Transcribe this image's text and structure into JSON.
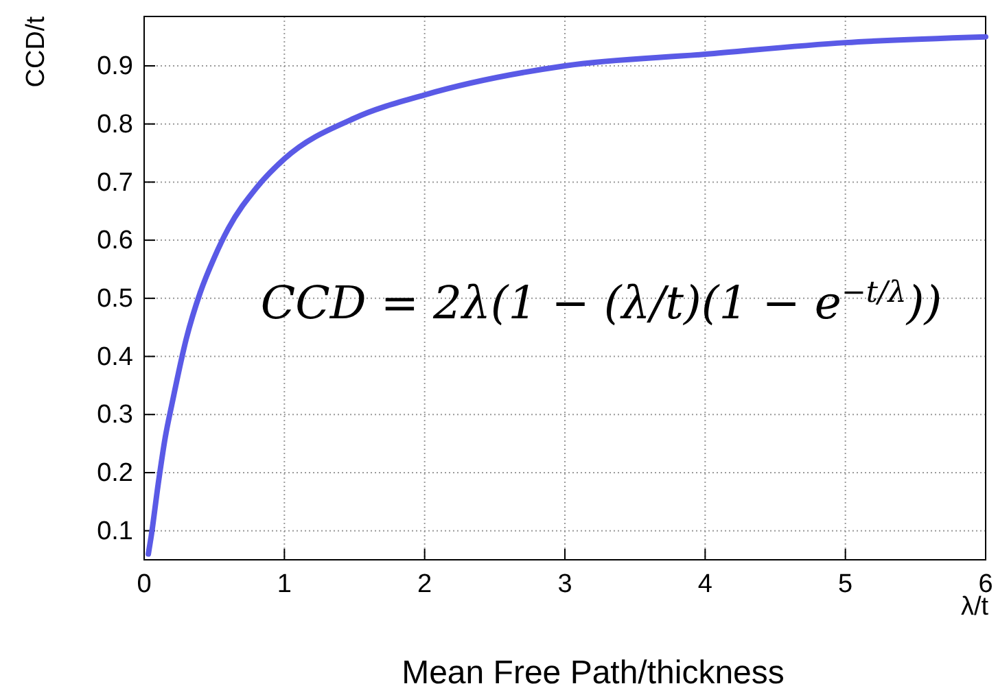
{
  "chart_data": {
    "type": "line",
    "xlabel": "λ/t",
    "ylabel": "CCD/t",
    "annotations": [
      "CCD = 2λ(1 − (λ/t)(1 − e$^{−t/λ}$))",
      "Mean Free Path/thickness"
    ],
    "xlim": [
      0,
      6
    ],
    "xticks": [
      0,
      1,
      2,
      3,
      4,
      5,
      6
    ],
    "ylim": [
      0.05,
      0.985
    ],
    "yticks": [
      0.1,
      0.2,
      0.3,
      0.4,
      0.5,
      0.6,
      0.7,
      0.8,
      0.9
    ],
    "grid": true,
    "line_style": "solid",
    "series": [
      {
        "color": "#5a5ae6",
        "x": [
          0.03,
          0.05,
          0.1,
          0.15,
          0.2,
          0.3,
          0.4,
          0.5,
          0.6,
          0.8,
          1,
          1.5,
          2,
          3,
          4,
          5,
          6
        ],
        "values": [
          0.06,
          0.09,
          0.18,
          0.26,
          0.32,
          0.43,
          0.51,
          0.57,
          0.62,
          0.69,
          0.74,
          0.81,
          0.85,
          0.9,
          0.92,
          0.94,
          0.95
        ]
      }
    ]
  }
}
